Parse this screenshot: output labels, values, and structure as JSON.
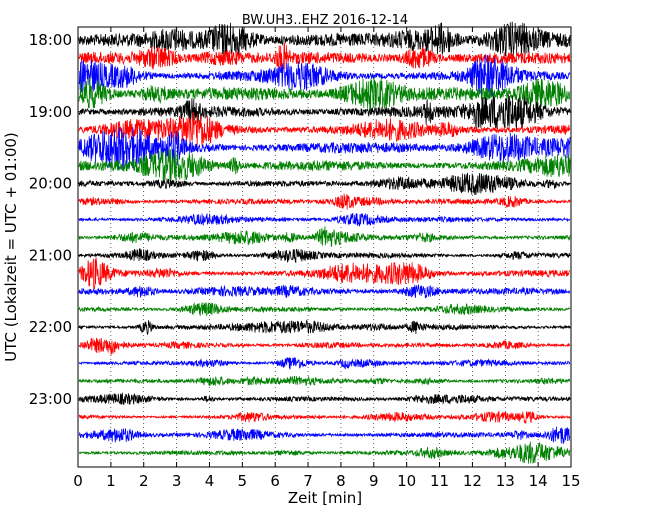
{
  "chart_data": {
    "type": "line",
    "title": "BW.UH3..EHZ 2016-12-14",
    "xlabel": "Zeit  [min]",
    "ylabel": "UTC (Lokalzeit = UTC + 01:00)",
    "xlim": [
      0,
      15
    ],
    "x_ticks": [
      "0",
      "1",
      "2",
      "3",
      "4",
      "5",
      "6",
      "7",
      "8",
      "9",
      "10",
      "11",
      "12",
      "13",
      "14",
      "15"
    ],
    "y_ticks": [
      "18:00",
      "19:00",
      "20:00",
      "21:00",
      "22:00",
      "23:00"
    ],
    "grid": "vertical dotted",
    "trace_colors": [
      "#000000",
      "#ff0000",
      "#0000ff",
      "#008000"
    ],
    "traces": [
      {
        "start": "18:00",
        "amplitude": 1.0
      },
      {
        "start": "18:15",
        "amplitude": 0.9
      },
      {
        "start": "18:30",
        "amplitude": 0.85
      },
      {
        "start": "18:45",
        "amplitude": 1.0
      },
      {
        "start": "19:00",
        "amplitude": 0.85
      },
      {
        "start": "19:15",
        "amplitude": 0.85
      },
      {
        "start": "19:30",
        "amplitude": 0.85
      },
      {
        "start": "19:45",
        "amplitude": 0.8
      },
      {
        "start": "20:00",
        "amplitude": 0.45
      },
      {
        "start": "20:15",
        "amplitude": 0.4
      },
      {
        "start": "20:30",
        "amplitude": 0.4
      },
      {
        "start": "20:45",
        "amplitude": 0.4
      },
      {
        "start": "21:00",
        "amplitude": 0.4
      },
      {
        "start": "21:15",
        "amplitude": 0.5
      },
      {
        "start": "21:30",
        "amplitude": 0.5
      },
      {
        "start": "21:45",
        "amplitude": 0.4
      },
      {
        "start": "22:00",
        "amplitude": 0.4
      },
      {
        "start": "22:15",
        "amplitude": 0.3
      },
      {
        "start": "22:30",
        "amplitude": 0.3
      },
      {
        "start": "22:45",
        "amplitude": 0.3
      },
      {
        "start": "23:00",
        "amplitude": 0.35
      },
      {
        "start": "23:15",
        "amplitude": 0.3
      },
      {
        "start": "23:30",
        "amplitude": 0.4
      },
      {
        "start": "23:45",
        "amplitude": 0.35
      }
    ]
  }
}
